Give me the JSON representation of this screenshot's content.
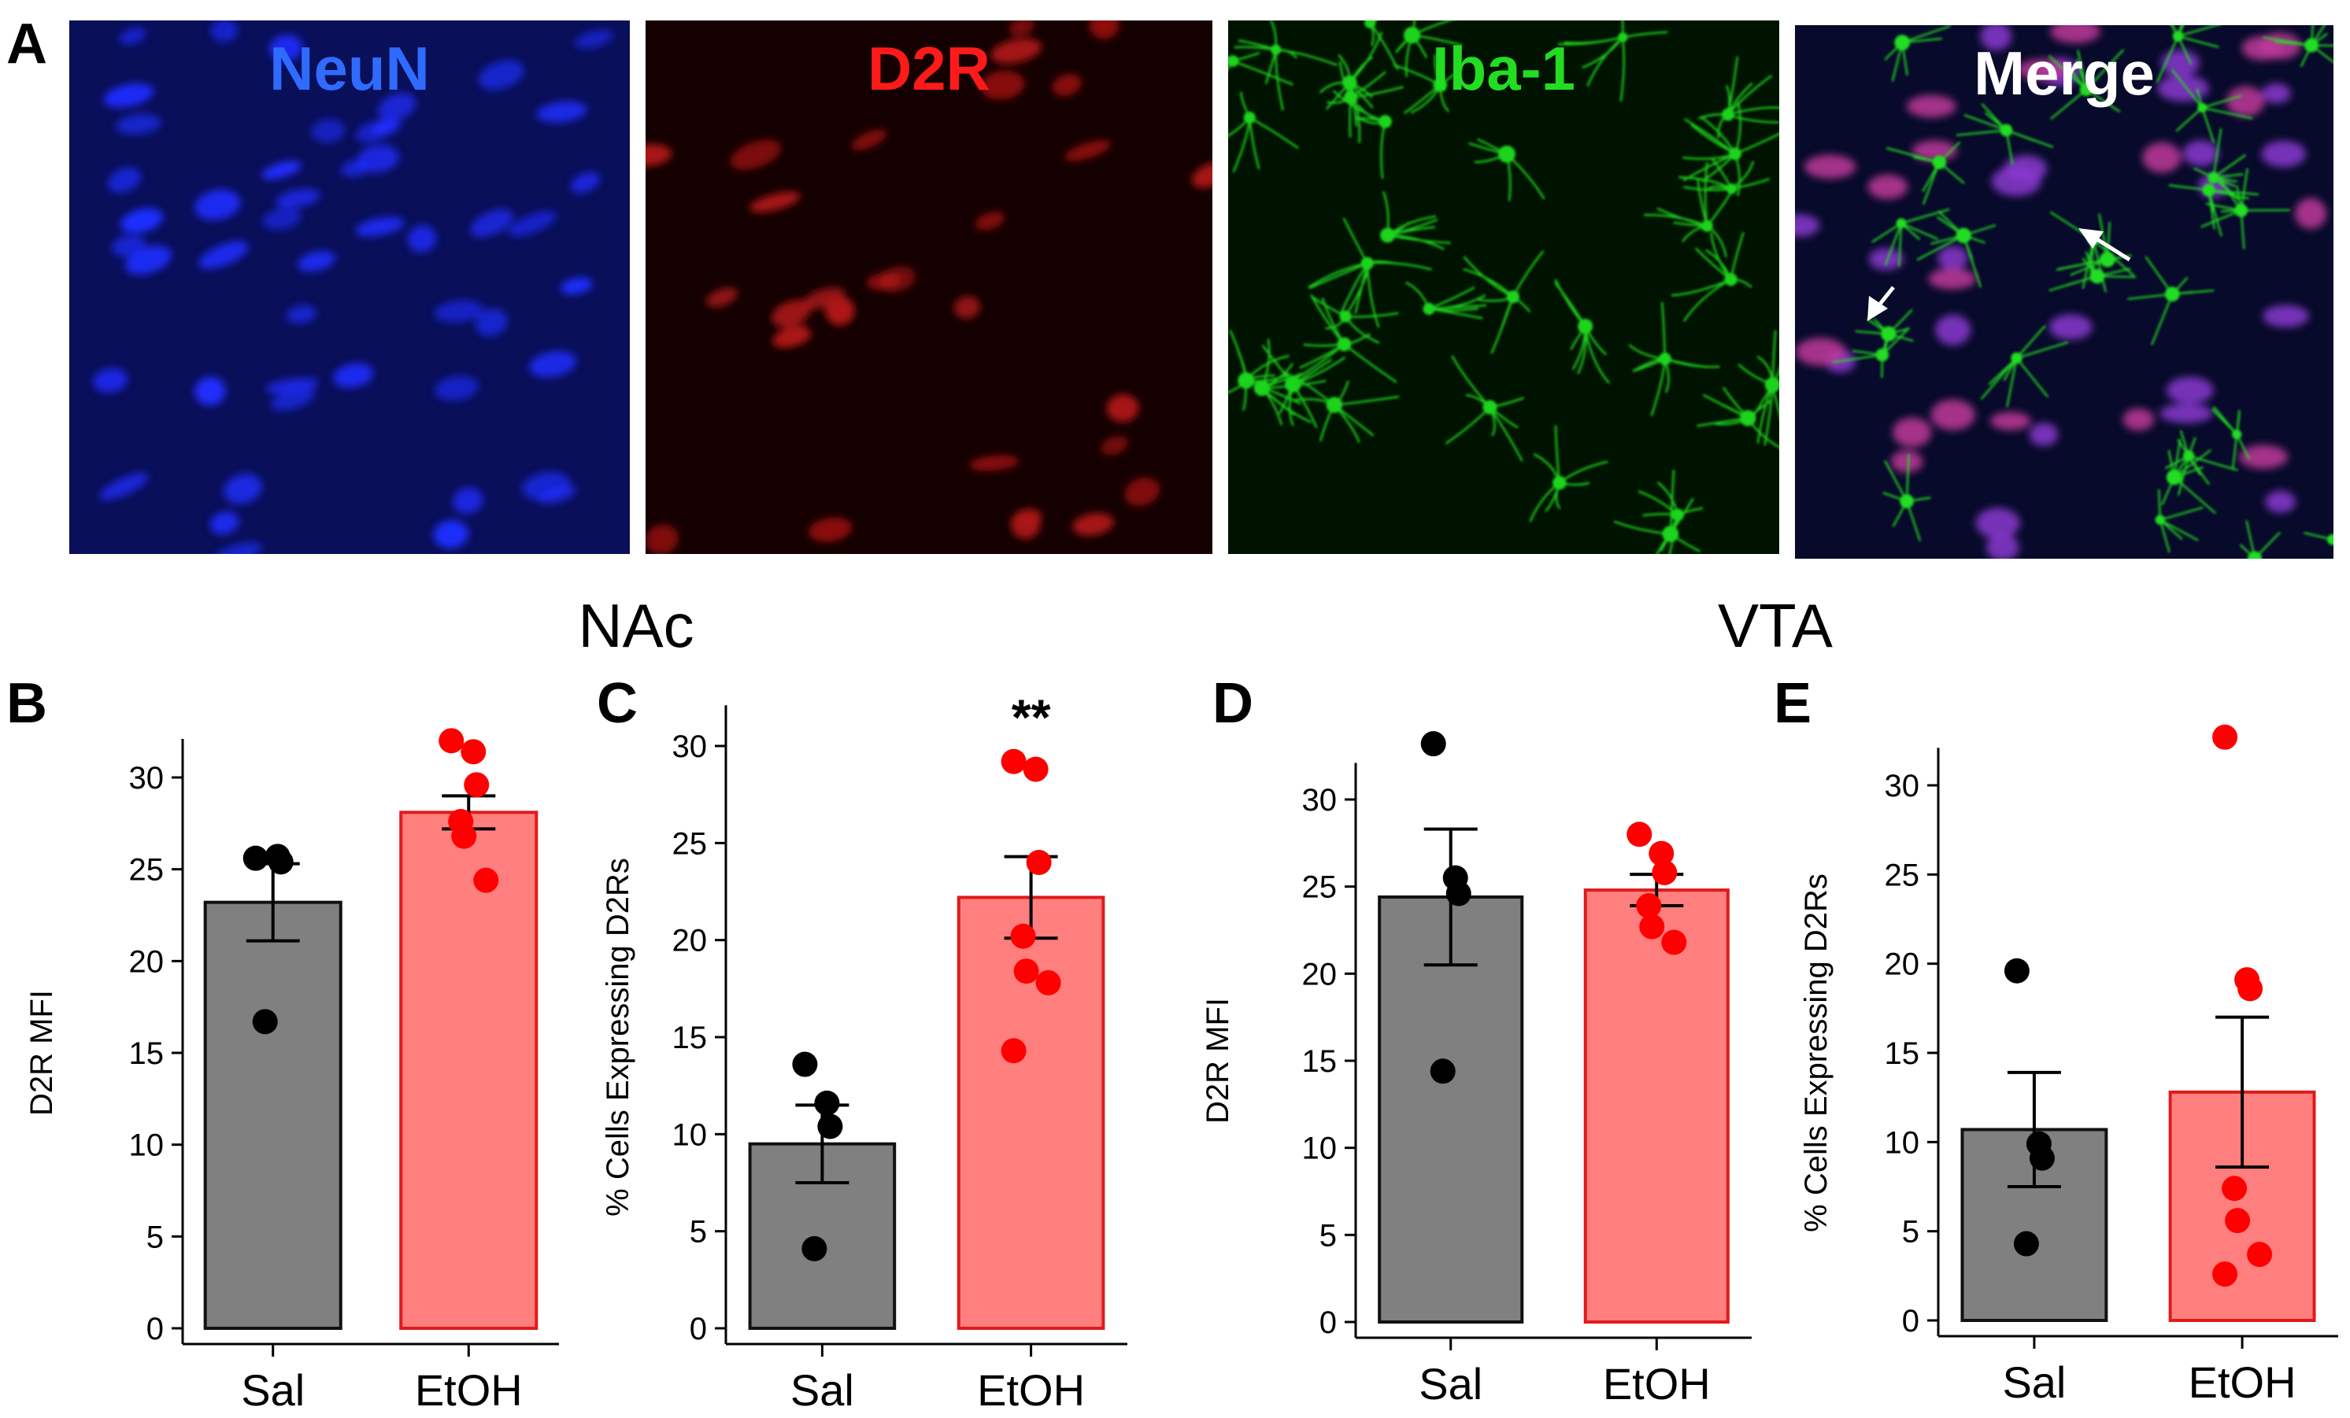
{
  "figure": {
    "panel_a_label": "A",
    "regions": [
      "NAc",
      "VTA"
    ],
    "micrographs": [
      {
        "label": "NeuN",
        "color": "#2f6bff",
        "tissue": "#0a0f5a",
        "cell": "#1f2dff"
      },
      {
        "label": "D2R",
        "color": "#ff1a1a",
        "tissue": "#140000",
        "cell": "#b01515"
      },
      {
        "label": "Iba-1",
        "color": "#22dd22",
        "tissue": "#001200",
        "cell": "#1fd41f"
      },
      {
        "label": "Merge",
        "color": "#ffffff",
        "tissue": "#070a2a",
        "cell": "#8a3ad0"
      }
    ]
  },
  "colors": {
    "sal_bar": "#808080",
    "etoh_bar": "#ff7f7f",
    "etoh_edge": "#e01a1a",
    "etoh_dot": "#ff0000",
    "sal_dot": "#000000"
  },
  "chart_data": [
    {
      "panel": "B",
      "type": "bar",
      "region": "NAc",
      "categories": [
        "Sal",
        "EtOH"
      ],
      "values": [
        23.2,
        28.1
      ],
      "errors": [
        2.1,
        0.9
      ],
      "points": [
        [
          25.6,
          25.7,
          25.4,
          16.7
        ],
        [
          32.0,
          31.4,
          29.6,
          27.6,
          26.8,
          24.4
        ]
      ],
      "ylabel": "D2R MFI",
      "ylim": [
        0,
        30
      ],
      "yticks": [
        0,
        5,
        10,
        15,
        20,
        25,
        30
      ],
      "sig": ""
    },
    {
      "panel": "C",
      "type": "bar",
      "region": "NAc",
      "categories": [
        "Sal",
        "EtOH"
      ],
      "values": [
        9.5,
        22.2
      ],
      "errors": [
        2.0,
        2.1
      ],
      "points": [
        [
          13.6,
          11.6,
          10.4,
          4.1
        ],
        [
          29.2,
          28.8,
          24.0,
          20.2,
          18.4,
          17.8,
          14.3
        ]
      ],
      "ylabel": "% Cells Expressing D2Rs",
      "ylim": [
        0,
        30
      ],
      "yticks": [
        0,
        5,
        10,
        15,
        20,
        25,
        30
      ],
      "sig": "**"
    },
    {
      "panel": "D",
      "type": "bar",
      "region": "VTA",
      "categories": [
        "Sal",
        "EtOH"
      ],
      "values": [
        24.4,
        24.8
      ],
      "errors": [
        3.9,
        0.9
      ],
      "points": [
        [
          33.2,
          25.5,
          24.6,
          14.4
        ],
        [
          28.0,
          26.9,
          25.8,
          23.9,
          22.7,
          21.8
        ]
      ],
      "ylabel": "D2R MFI",
      "ylim": [
        0,
        30
      ],
      "yticks": [
        0,
        5,
        10,
        15,
        20,
        25,
        30
      ],
      "sig": ""
    },
    {
      "panel": "E",
      "type": "bar",
      "region": "VTA",
      "categories": [
        "Sal",
        "EtOH"
      ],
      "values": [
        10.7,
        12.8
      ],
      "errors": [
        3.2,
        4.2
      ],
      "points": [
        [
          19.6,
          9.9,
          9.1,
          4.3
        ],
        [
          32.7,
          19.1,
          18.6,
          7.4,
          5.6,
          3.7,
          2.6
        ]
      ],
      "ylabel": "% Cells Expressing D2Rs",
      "ylim": [
        0,
        30
      ],
      "yticks": [
        0,
        5,
        10,
        15,
        20,
        25,
        30
      ],
      "sig": ""
    }
  ]
}
